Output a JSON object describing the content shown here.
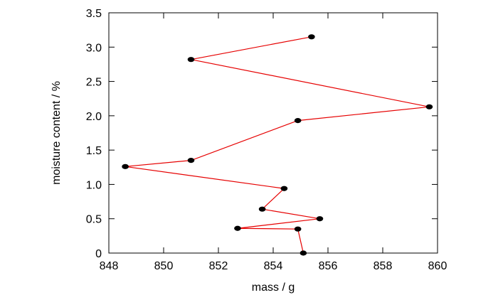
{
  "chart_data": {
    "type": "line",
    "title": "",
    "xlabel": "mass / g",
    "ylabel": "moisture content / %",
    "xlim": [
      848,
      860
    ],
    "ylim": [
      0,
      3.5
    ],
    "xticks": [
      848,
      850,
      852,
      854,
      856,
      858,
      860
    ],
    "xtick_labels": [
      "848",
      "850",
      "852",
      "854",
      "856",
      "858",
      "860"
    ],
    "yticks": [
      0,
      0.5,
      1.0,
      1.5,
      2.0,
      2.5,
      3.0,
      3.5
    ],
    "ytick_labels": [
      "0",
      "0.5",
      "1.0",
      "1.5",
      "2.0",
      "2.5",
      "3.0",
      "3.5"
    ],
    "grid": false,
    "legend": "none",
    "line_color": "#e60000",
    "marker_color": "#000000",
    "series": [
      {
        "x": [
          855.1,
          854.9,
          852.7,
          855.7,
          853.6,
          854.4,
          848.6,
          851.0,
          854.9,
          859.7,
          851.0,
          855.4
        ],
        "y": [
          0.0,
          0.35,
          0.36,
          0.5,
          0.64,
          0.94,
          1.26,
          1.35,
          1.93,
          2.13,
          2.82,
          3.15
        ]
      }
    ]
  }
}
